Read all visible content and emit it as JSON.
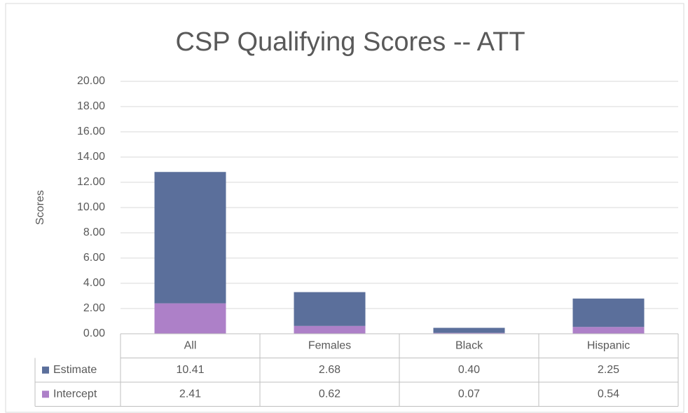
{
  "chart_data": {
    "type": "stacked_bar",
    "title": "CSP Qualifying Scores -- ATT",
    "y_label": "Scores",
    "categories": [
      "All",
      "Females",
      "Black",
      "Hispanic"
    ],
    "series": [
      {
        "name": "Estimate",
        "color": "#5b6f9b",
        "values": [
          10.41,
          2.68,
          0.4,
          2.25
        ],
        "value_labels": [
          "10.41",
          "2.68",
          "0.40",
          "2.25"
        ]
      },
      {
        "name": "Intercept",
        "color": "#ad80c8",
        "values": [
          2.41,
          0.62,
          0.07,
          0.54
        ],
        "value_labels": [
          "2.41",
          "0.62",
          "0.07",
          "0.54"
        ]
      }
    ],
    "ylim": [
      0,
      20
    ],
    "yticks": [
      {
        "value": 0,
        "label": "0.00"
      },
      {
        "value": 2,
        "label": "2.00"
      },
      {
        "value": 4,
        "label": "4.00"
      },
      {
        "value": 6,
        "label": "6.00"
      },
      {
        "value": 8,
        "label": "8.00"
      },
      {
        "value": 10,
        "label": "10.00"
      },
      {
        "value": 12,
        "label": "12.00"
      },
      {
        "value": 14,
        "label": "14.00"
      },
      {
        "value": 16,
        "label": "16.00"
      },
      {
        "value": 18,
        "label": "18.00"
      },
      {
        "value": 20,
        "label": "20.00"
      }
    ],
    "grid": true,
    "data_table": true
  }
}
